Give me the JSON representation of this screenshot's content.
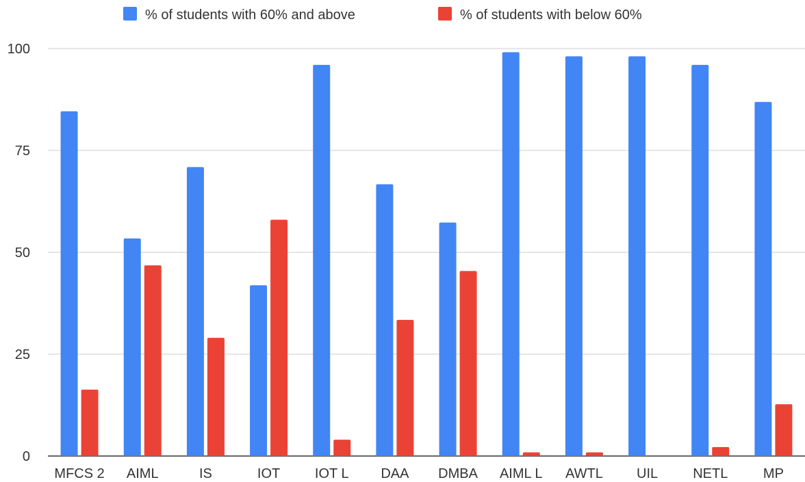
{
  "chart_data": {
    "type": "bar",
    "categories": [
      "MFCS 2",
      "AIML",
      "IS",
      "IOT",
      "IOT L",
      "DAA",
      "DMBA",
      "AIML L",
      "AWTL",
      "UIL",
      "NETL",
      "MP"
    ],
    "series": [
      {
        "name": "% of students with 60% and above",
        "color": "#4285f4",
        "values": [
          84.6,
          53.4,
          70.9,
          41.9,
          96,
          66.7,
          57.3,
          99.1,
          98.1,
          98.1,
          96,
          86.9
        ]
      },
      {
        "name": "% of students with below 60%",
        "color": "#ea4335",
        "values": [
          16.3,
          46.8,
          29,
          58,
          4,
          33.4,
          45.4,
          0.9,
          0.9,
          0,
          2.2,
          12.7
        ]
      }
    ],
    "yticks": [
      "0",
      "25",
      "50",
      "75",
      "100"
    ],
    "ylim": [
      0,
      100
    ],
    "legend_position": "top",
    "grid": true,
    "title": "",
    "xlabel": "",
    "ylabel": ""
  }
}
